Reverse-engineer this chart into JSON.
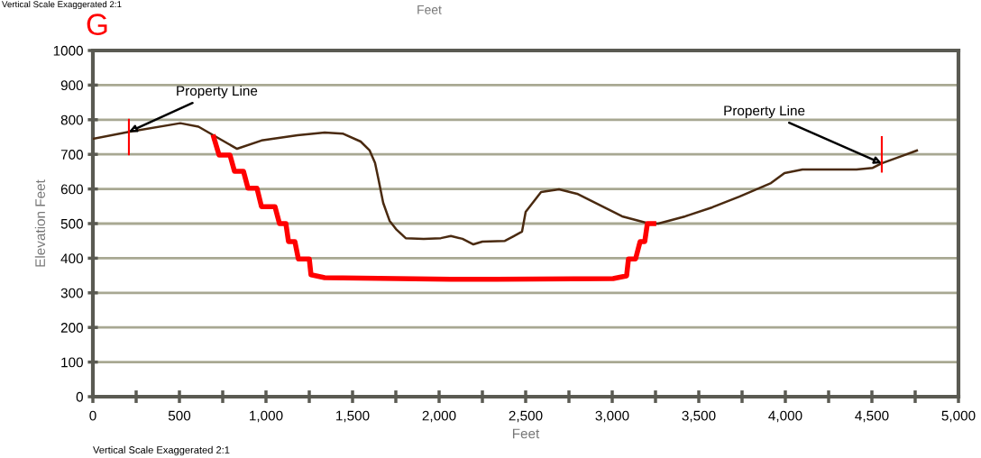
{
  "chart_data": {
    "type": "line",
    "title": "G",
    "xlabel": "Feet",
    "ylabel": "Elevation Feet",
    "xlim": [
      0,
      5000
    ],
    "ylim": [
      0,
      1000
    ],
    "xticks": [
      {
        "value": 0,
        "label": "0"
      },
      {
        "value": 250,
        "label": null
      },
      {
        "value": 500,
        "label": "500"
      },
      {
        "value": 750,
        "label": null
      },
      {
        "value": 1000,
        "label": "1,000"
      },
      {
        "value": 1250,
        "label": null
      },
      {
        "value": 1500,
        "label": "1,500"
      },
      {
        "value": 1750,
        "label": null
      },
      {
        "value": 2000,
        "label": "2,000"
      },
      {
        "value": 2250,
        "label": null
      },
      {
        "value": 2500,
        "label": "2,500"
      },
      {
        "value": 2750,
        "label": null
      },
      {
        "value": 3000,
        "label": "3,000"
      },
      {
        "value": 3250,
        "label": null
      },
      {
        "value": 3500,
        "label": "3,500"
      },
      {
        "value": 3750,
        "label": null
      },
      {
        "value": 4000,
        "label": "4,000"
      },
      {
        "value": 4250,
        "label": null
      },
      {
        "value": 4500,
        "label": "4,500"
      },
      {
        "value": 4750,
        "label": null
      },
      {
        "value": 5000,
        "label": "5,000"
      }
    ],
    "yticks": [
      0,
      100,
      200,
      300,
      400,
      500,
      600,
      700,
      800,
      900,
      1000
    ],
    "grid": "y",
    "marker": "none",
    "line_style": "solid",
    "series": [
      {
        "color": "#4a2a10",
        "x": [
          0,
          208,
          505,
          610,
          714,
          833,
          974,
          1182,
          1339,
          1443,
          1547,
          1599,
          1630,
          1651,
          1677,
          1714,
          1755,
          1807,
          1911,
          2010,
          2068,
          2135,
          2198,
          2250,
          2380,
          2432,
          2479,
          2500,
          2589,
          2693,
          2797,
          2901,
          3057,
          3214,
          3266,
          3422,
          3578,
          3734,
          3917,
          3995,
          4099,
          4411,
          4505,
          4557,
          4672,
          4760
        ],
        "values": [
          745,
          765,
          790,
          780,
          750,
          716,
          740,
          755,
          763,
          760,
          737,
          711,
          675,
          625,
          560,
          508,
          482,
          458,
          456,
          458,
          464,
          456,
          440,
          448,
          450,
          464,
          477,
          534,
          591,
          599,
          586,
          560,
          521,
          500,
          500,
          521,
          547,
          578,
          617,
          646,
          656,
          656,
          661,
          674,
          695,
          711
        ]
      },
      {
        "color": "#ff0000",
        "x": [
          698,
          729,
          792,
          818,
          870,
          896,
          948,
          974,
          1052,
          1078,
          1115,
          1130,
          1167,
          1187,
          1250,
          1260,
          1339,
          2068,
          2328,
          3005,
          3083,
          3094,
          3135,
          3161,
          3188,
          3203,
          3240
        ],
        "values": [
          750,
          698,
          698,
          651,
          651,
          602,
          602,
          549,
          549,
          500,
          500,
          448,
          448,
          398,
          398,
          352,
          344,
          339,
          339,
          341,
          349,
          398,
          398,
          448,
          448,
          500,
          500
        ]
      },
      {
        "color": "#ff0000",
        "x": [
          208,
          208
        ],
        "values": [
          700,
          800
        ]
      },
      {
        "color": "#ff0000",
        "x": [
          4557,
          4557
        ],
        "values": [
          650,
          750
        ]
      }
    ],
    "annotations": [
      {
        "text": "Property Line",
        "x": 208,
        "y": 765
      },
      {
        "text": "Property Line",
        "x": 4557,
        "y": 674
      },
      "Vertical Scale Exaggerated 2:1",
      "Feet",
      "Vertical Scale Exaggerated 2:1"
    ]
  }
}
